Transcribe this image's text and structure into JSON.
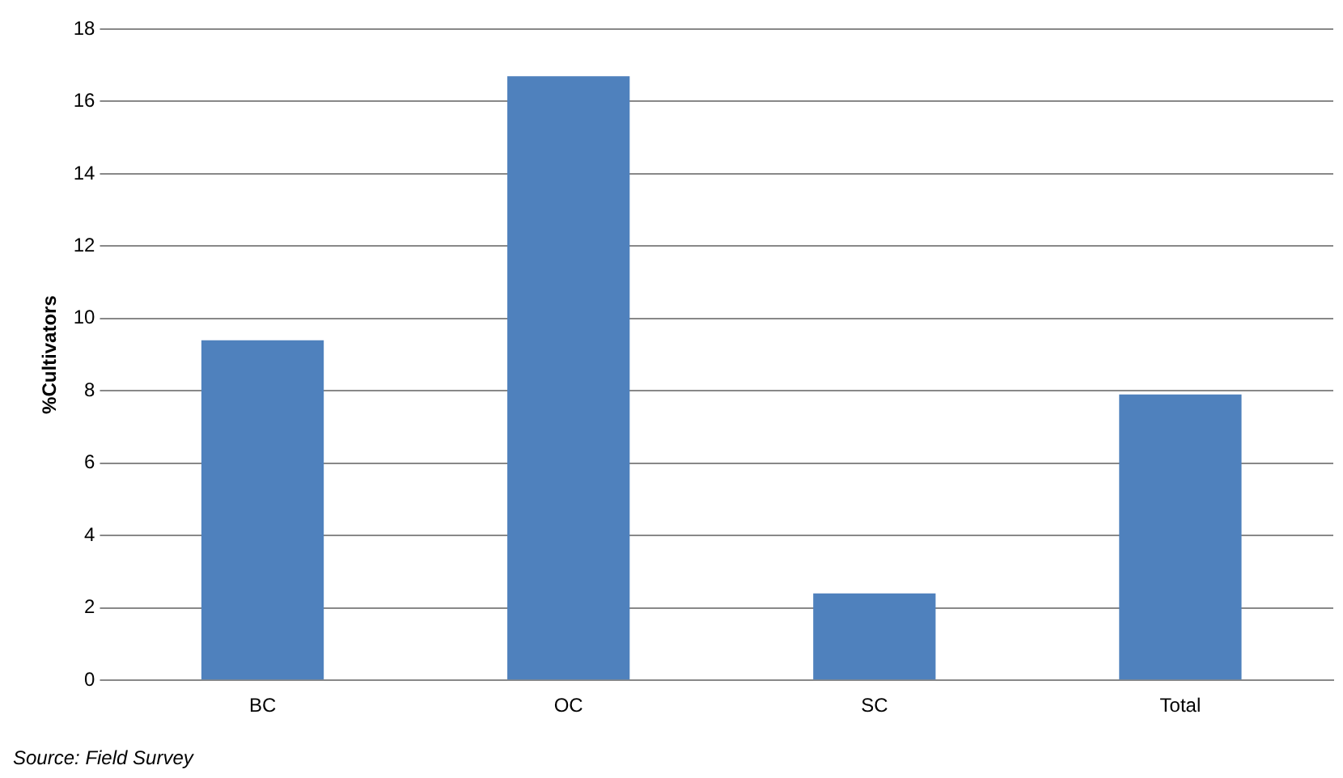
{
  "chart_data": {
    "type": "bar",
    "ylabel": "%Cultivators",
    "categories": [
      "BC",
      "OC",
      "SC",
      "Total"
    ],
    "values": [
      9.4,
      16.7,
      2.4,
      7.9
    ],
    "color": "#4f81bd",
    "ylim": [
      0,
      18
    ],
    "yticks": [
      0,
      2,
      4,
      6,
      8,
      10,
      12,
      14,
      16,
      18
    ],
    "grid": "y",
    "legend": false,
    "annotations": [
      "Source: Field Survey"
    ]
  }
}
